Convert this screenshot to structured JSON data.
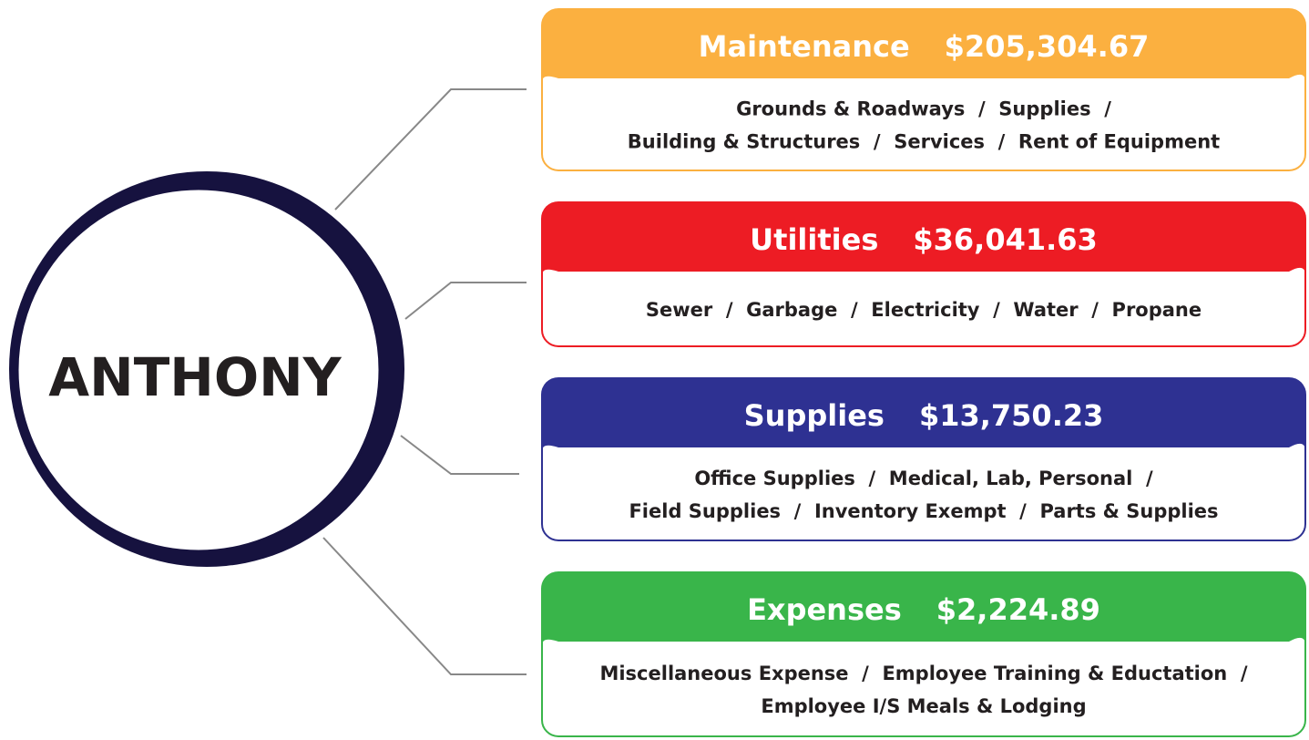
{
  "center": {
    "label": "ANTHONY"
  },
  "boxes": [
    {
      "title": "Maintenance",
      "amount": "$205,304.67",
      "color": "#fbb040",
      "lines": [
        "Grounds & Roadways  /  Supplies  /",
        "Building & Structures  /  Services  /  Rent of Equipment"
      ]
    },
    {
      "title": "Utilities",
      "amount": "$36,041.63",
      "color": "#ed1c24",
      "lines": [
        "Sewer  /  Garbage  /  Electricity  /  Water  /  Propane"
      ]
    },
    {
      "title": "Supplies",
      "amount": "$13,750.23",
      "color": "#2e3192",
      "lines": [
        "Office Supplies  /  Medical, Lab, Personal  /",
        "Field Supplies  /  Inventory Exempt  /  Parts & Supplies"
      ]
    },
    {
      "title": "Expenses",
      "amount": "$2,224.89",
      "color": "#39b54a",
      "lines": [
        "Miscellaneous Expense  /  Employee Training & Eductation  /",
        "Employee I/S Meals & Lodging"
      ]
    }
  ]
}
